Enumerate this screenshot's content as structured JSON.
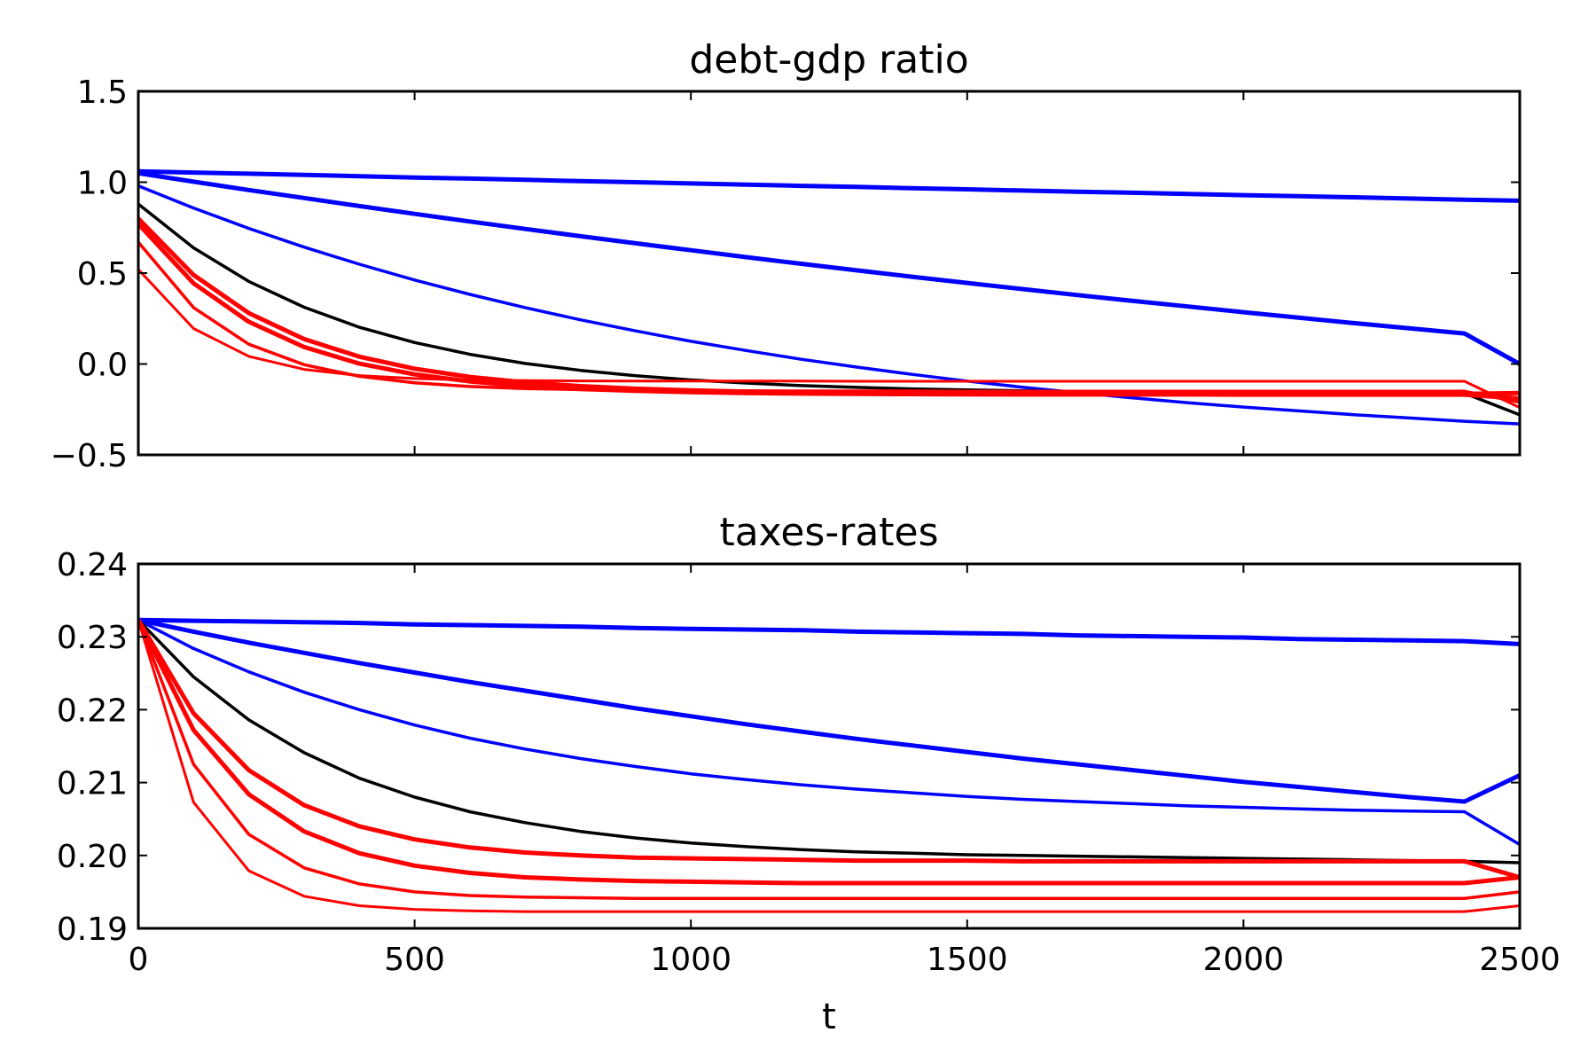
{
  "chart_data": [
    {
      "type": "line",
      "title": "debt-gdp ratio",
      "xlabel": "",
      "ylabel": "",
      "xlim": [
        0,
        2500
      ],
      "ylim": [
        -0.5,
        1.5
      ],
      "x_ticks": [
        0,
        500,
        1000,
        1500,
        2000,
        2500
      ],
      "y_ticks": [
        -0.5,
        0.0,
        0.5,
        1.0,
        1.5
      ],
      "x_tick_labels": [
        "",
        "",
        "",
        "",
        "",
        ""
      ],
      "y_tick_labels": [
        "−0.5",
        "0.0",
        "0.5",
        "1.0",
        "1.5"
      ],
      "x": [
        0,
        100,
        200,
        300,
        400,
        500,
        600,
        700,
        800,
        900,
        1000,
        1100,
        1200,
        1300,
        1400,
        1500,
        1600,
        1700,
        1800,
        1900,
        2000,
        2100,
        2200,
        2300,
        2400,
        2500
      ],
      "series": [
        {
          "color": "#0000ff",
          "width": 5,
          "values": [
            1.06,
            1.053,
            1.047,
            1.04,
            1.033,
            1.026,
            1.02,
            1.013,
            1.006,
            1.0,
            0.993,
            0.987,
            0.98,
            0.974,
            0.967,
            0.961,
            0.954,
            0.948,
            0.942,
            0.935,
            0.929,
            0.923,
            0.917,
            0.91,
            0.904,
            0.898
          ]
        },
        {
          "color": "#0000ff",
          "width": 5,
          "values": [
            1.05,
            1.003,
            0.957,
            0.913,
            0.869,
            0.826,
            0.784,
            0.743,
            0.703,
            0.664,
            0.626,
            0.588,
            0.551,
            0.515,
            0.48,
            0.446,
            0.412,
            0.379,
            0.347,
            0.316,
            0.285,
            0.255,
            0.225,
            0.196,
            0.168,
            0.0
          ]
        },
        {
          "color": "#0000ff",
          "width": 3.5,
          "values": [
            0.98,
            0.858,
            0.746,
            0.643,
            0.549,
            0.462,
            0.383,
            0.31,
            0.243,
            0.182,
            0.125,
            0.074,
            0.026,
            -0.017,
            -0.057,
            -0.094,
            -0.128,
            -0.158,
            -0.187,
            -0.213,
            -0.237,
            -0.258,
            -0.279,
            -0.297,
            -0.315,
            -0.33
          ]
        },
        {
          "color": "#000000",
          "width": 3.5,
          "values": [
            0.88,
            0.639,
            0.454,
            0.312,
            0.202,
            0.118,
            0.053,
            0.003,
            -0.035,
            -0.065,
            -0.088,
            -0.105,
            -0.119,
            -0.129,
            -0.137,
            -0.143,
            -0.148,
            -0.151,
            -0.154,
            -0.156,
            -0.158,
            -0.159,
            -0.16,
            -0.16,
            -0.161,
            -0.28
          ]
        },
        {
          "color": "#ff0000",
          "width": 5,
          "values": [
            0.8,
            0.49,
            0.28,
            0.137,
            0.04,
            -0.026,
            -0.071,
            -0.101,
            -0.122,
            -0.136,
            -0.145,
            -0.152,
            -0.156,
            -0.159,
            -0.161,
            -0.162,
            -0.163,
            -0.164,
            -0.164,
            -0.164,
            -0.165,
            -0.165,
            -0.165,
            -0.165,
            -0.165,
            -0.16
          ]
        },
        {
          "color": "#ff0000",
          "width": 5,
          "values": [
            0.77,
            0.444,
            0.232,
            0.093,
            0.002,
            -0.057,
            -0.096,
            -0.121,
            -0.138,
            -0.148,
            -0.155,
            -0.16,
            -0.163,
            -0.165,
            -0.166,
            -0.167,
            -0.168,
            -0.168,
            -0.168,
            -0.168,
            -0.169,
            -0.169,
            -0.169,
            -0.169,
            -0.169,
            -0.19
          ]
        },
        {
          "color": "#ff0000",
          "width": 3.5,
          "values": [
            0.67,
            0.31,
            0.109,
            -0.004,
            -0.068,
            -0.104,
            -0.124,
            -0.135,
            -0.141,
            -0.145,
            -0.147,
            -0.148,
            -0.149,
            -0.149,
            -0.149,
            -0.15,
            -0.15,
            -0.15,
            -0.15,
            -0.15,
            -0.15,
            -0.15,
            -0.15,
            -0.15,
            -0.15,
            -0.21
          ]
        },
        {
          "color": "#ff0000",
          "width": 3,
          "values": [
            0.52,
            0.195,
            0.042,
            -0.03,
            -0.064,
            -0.08,
            -0.088,
            -0.091,
            -0.093,
            -0.094,
            -0.094,
            -0.094,
            -0.094,
            -0.095,
            -0.095,
            -0.095,
            -0.095,
            -0.095,
            -0.095,
            -0.095,
            -0.095,
            -0.095,
            -0.095,
            -0.095,
            -0.095,
            -0.24
          ]
        }
      ]
    },
    {
      "type": "line",
      "title": "taxes-rates",
      "xlabel": "t",
      "ylabel": "",
      "xlim": [
        0,
        2500
      ],
      "ylim": [
        0.19,
        0.24
      ],
      "x_ticks": [
        0,
        500,
        1000,
        1500,
        2000,
        2500
      ],
      "y_ticks": [
        0.19,
        0.2,
        0.21,
        0.22,
        0.23,
        0.24
      ],
      "x_tick_labels": [
        "0",
        "500",
        "1000",
        "1500",
        "2000",
        "2500"
      ],
      "y_tick_labels": [
        "0.19",
        "0.20",
        "0.21",
        "0.22",
        "0.23",
        "0.24"
      ],
      "x": [
        0,
        100,
        200,
        300,
        400,
        500,
        600,
        700,
        800,
        900,
        1000,
        1100,
        1200,
        1300,
        1400,
        1500,
        1600,
        1700,
        1800,
        1900,
        2000,
        2100,
        2200,
        2300,
        2400,
        2500
      ],
      "series": [
        {
          "color": "#0000ff",
          "width": 5,
          "values": [
            0.2323,
            0.2322,
            0.2321,
            0.232,
            0.2319,
            0.2317,
            0.2316,
            0.2315,
            0.2314,
            0.2312,
            0.2311,
            0.231,
            0.2309,
            0.2307,
            0.2306,
            0.2305,
            0.2304,
            0.2302,
            0.2301,
            0.23,
            0.2299,
            0.2297,
            0.2296,
            0.2295,
            0.2294,
            0.229
          ]
        },
        {
          "color": "#0000ff",
          "width": 5,
          "values": [
            0.2323,
            0.2307,
            0.2292,
            0.2278,
            0.2264,
            0.2251,
            0.2238,
            0.2226,
            0.2214,
            0.2202,
            0.2191,
            0.218,
            0.217,
            0.216,
            0.2151,
            0.2142,
            0.2133,
            0.2125,
            0.2117,
            0.2109,
            0.2101,
            0.2094,
            0.2087,
            0.208,
            0.2074,
            0.211
          ]
        },
        {
          "color": "#0000ff",
          "width": 3.5,
          "values": [
            0.2323,
            0.2284,
            0.2252,
            0.2224,
            0.22,
            0.2179,
            0.2161,
            0.2146,
            0.2133,
            0.2122,
            0.2112,
            0.2104,
            0.2097,
            0.2091,
            0.2086,
            0.2081,
            0.2077,
            0.2074,
            0.2071,
            0.2068,
            0.2066,
            0.2064,
            0.2062,
            0.2061,
            0.206,
            0.2015
          ]
        },
        {
          "color": "#000000",
          "width": 3.5,
          "values": [
            0.2323,
            0.2245,
            0.2186,
            0.2141,
            0.2106,
            0.208,
            0.206,
            0.2045,
            0.2033,
            0.2024,
            0.2017,
            0.2012,
            0.2008,
            0.2005,
            0.2003,
            0.2001,
            0.2,
            0.1999,
            0.1998,
            0.1997,
            0.1996,
            0.1995,
            0.1994,
            0.1993,
            0.1992,
            0.199
          ]
        },
        {
          "color": "#ff0000",
          "width": 5,
          "values": [
            0.2323,
            0.2195,
            0.2117,
            0.2069,
            0.204,
            0.2022,
            0.2011,
            0.2004,
            0.2,
            0.1997,
            0.1996,
            0.1995,
            0.1994,
            0.1993,
            0.1993,
            0.1993,
            0.1992,
            0.1992,
            0.1992,
            0.1992,
            0.1992,
            0.1992,
            0.1992,
            0.1992,
            0.1992,
            0.197
          ]
        },
        {
          "color": "#ff0000",
          "width": 5,
          "values": [
            0.2323,
            0.2172,
            0.2084,
            0.2033,
            0.2003,
            0.1986,
            0.1976,
            0.197,
            0.1967,
            0.1965,
            0.1964,
            0.1963,
            0.1962,
            0.1962,
            0.1962,
            0.1962,
            0.1962,
            0.1962,
            0.1962,
            0.1962,
            0.1962,
            0.1962,
            0.1962,
            0.1962,
            0.1962,
            0.197
          ]
        },
        {
          "color": "#ff0000",
          "width": 3.5,
          "values": [
            0.2323,
            0.2125,
            0.2029,
            0.1983,
            0.1961,
            0.195,
            0.1945,
            0.1943,
            0.1942,
            0.1941,
            0.1941,
            0.1941,
            0.1941,
            0.1941,
            0.1941,
            0.1941,
            0.1941,
            0.1941,
            0.1941,
            0.1941,
            0.1941,
            0.1941,
            0.1941,
            0.1941,
            0.1941,
            0.195
          ]
        },
        {
          "color": "#ff0000",
          "width": 3,
          "values": [
            0.2323,
            0.2073,
            0.1979,
            0.1944,
            0.1931,
            0.1926,
            0.1924,
            0.1923,
            0.1923,
            0.1923,
            0.1923,
            0.1923,
            0.1923,
            0.1923,
            0.1923,
            0.1923,
            0.1923,
            0.1923,
            0.1923,
            0.1923,
            0.1923,
            0.1923,
            0.1923,
            0.1923,
            0.1923,
            0.1931
          ]
        }
      ]
    }
  ]
}
